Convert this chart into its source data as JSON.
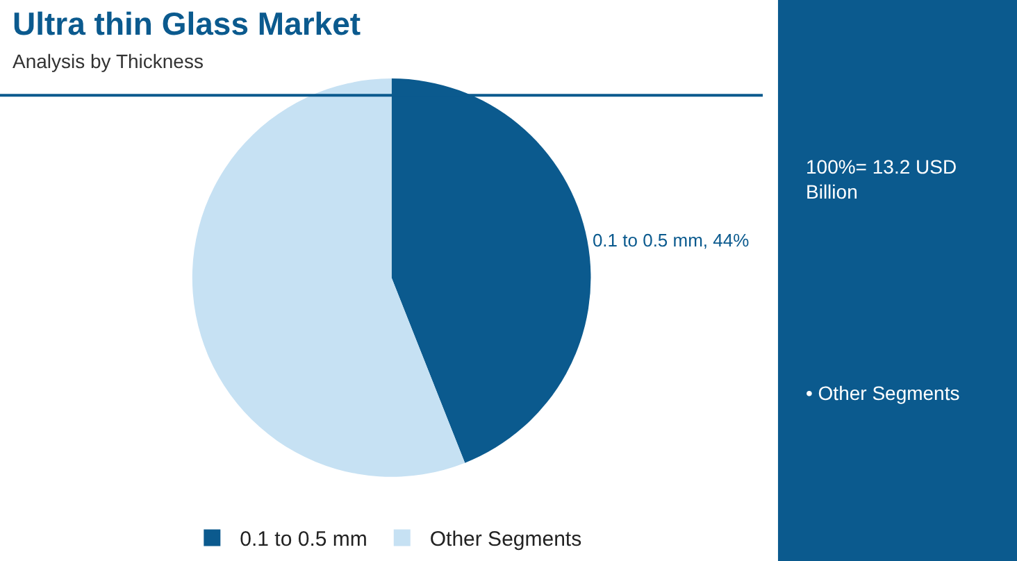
{
  "chart_data": {
    "type": "pie",
    "title": "Ultra thin Glass Market",
    "subtitle": "Analysis by Thickness",
    "categories": [
      "0.1 to 0.5 mm",
      "Other Segments"
    ],
    "values": [
      44,
      56
    ],
    "colors": [
      "#0b5a8e",
      "#c6e1f3"
    ],
    "value_labels": [
      "0.1 to 0.5 mm, 44%",
      null
    ],
    "legend": "bottom",
    "annotations": [
      "100%= 13.2 USD Billion",
      "• Other Segments"
    ]
  }
}
